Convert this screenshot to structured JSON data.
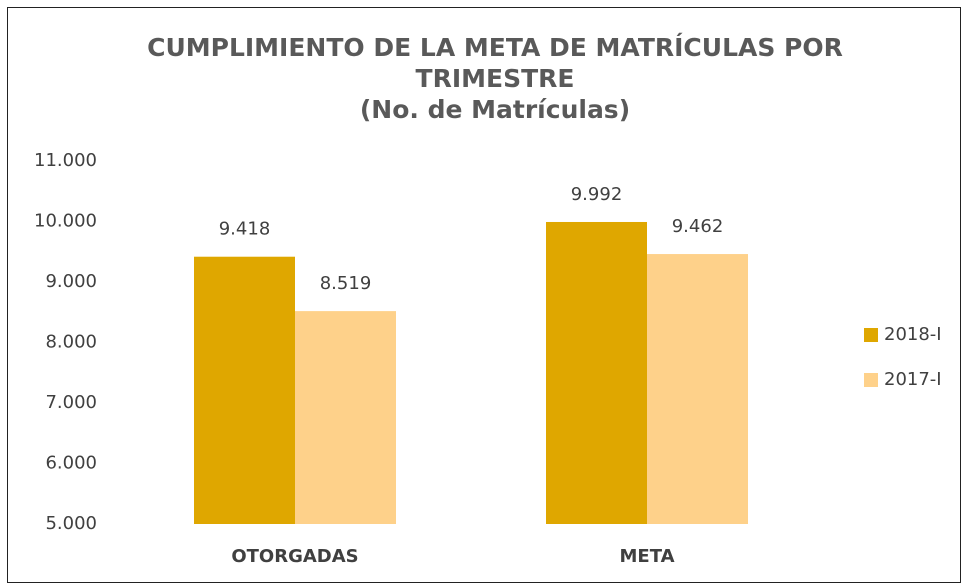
{
  "chart_data": {
    "type": "bar",
    "title": "CUMPLIMIENTO DE LA META DE MATRÍCULAS POR TRIMESTRE",
    "subtitle": "(No. de Matrículas)",
    "categories": [
      "OTORGADAS",
      "META"
    ],
    "series": [
      {
        "name": "2018-I",
        "color": "#dfa700",
        "values": [
          9418,
          9992
        ],
        "value_labels": [
          "9.418",
          "9.992"
        ]
      },
      {
        "name": "2017-I",
        "color": "#fed18a",
        "values": [
          8519,
          9462
        ],
        "value_labels": [
          "8.519",
          "9.462"
        ]
      }
    ],
    "ylim": [
      5000,
      11000
    ],
    "yticks": [
      {
        "value": 5000,
        "label": "5.000"
      },
      {
        "value": 6000,
        "label": "6.000"
      },
      {
        "value": 7000,
        "label": "7.000"
      },
      {
        "value": 8000,
        "label": "8.000"
      },
      {
        "value": 9000,
        "label": "9.000"
      },
      {
        "value": 10000,
        "label": "10.000"
      },
      {
        "value": 11000,
        "label": "11.000"
      }
    ],
    "grid": false,
    "legend": "right"
  }
}
